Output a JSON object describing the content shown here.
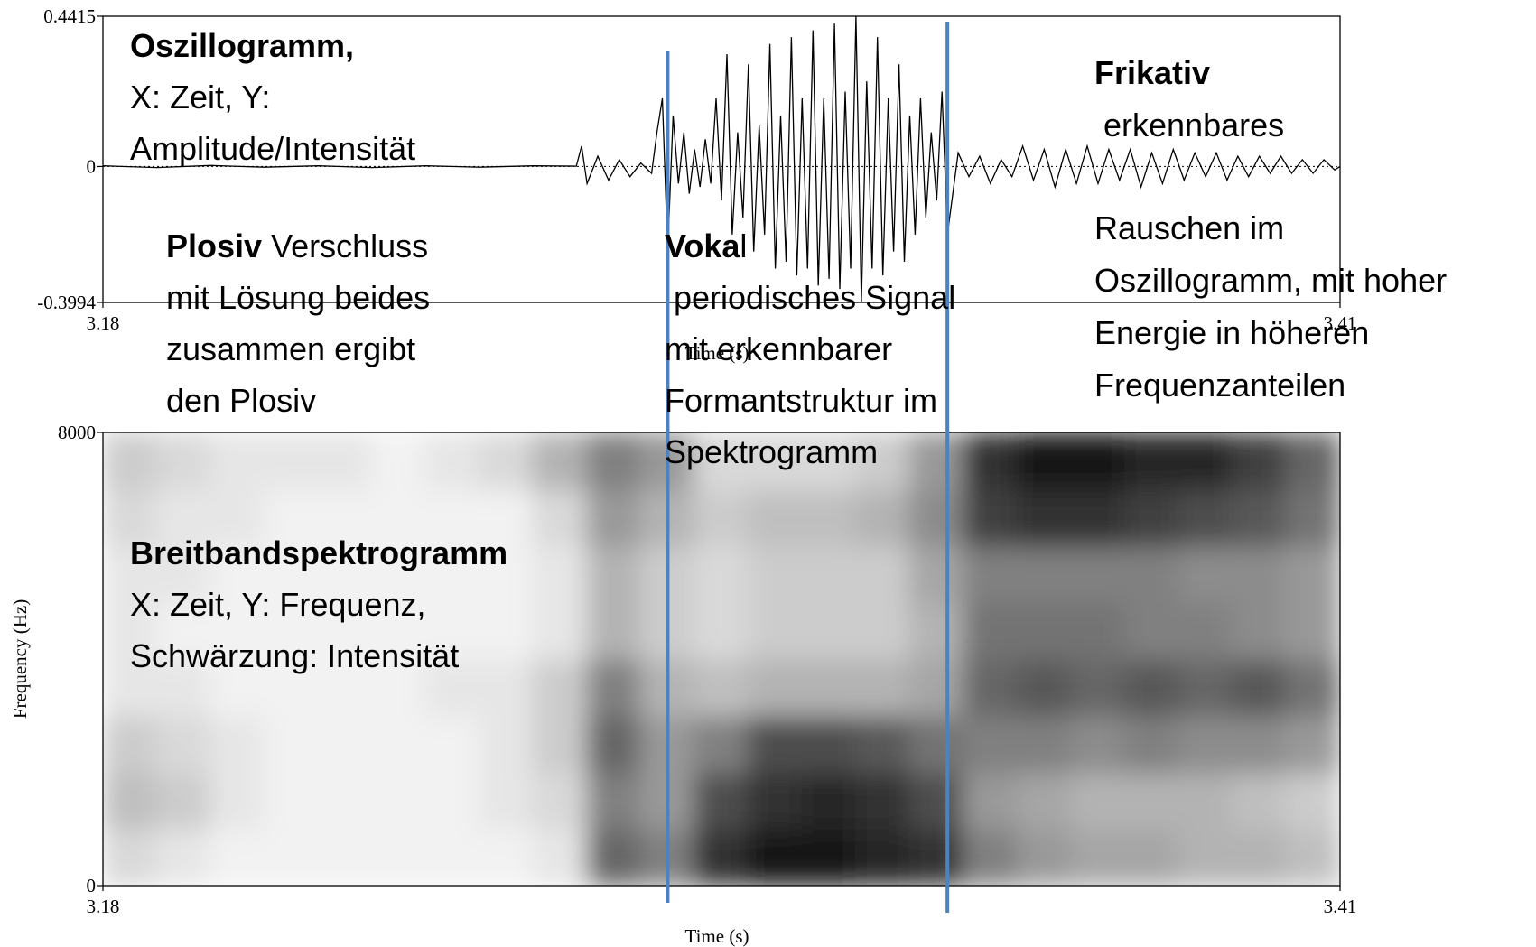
{
  "chart_data": [
    {
      "type": "line",
      "color": "#000000",
      "xlabel": "Time (s)",
      "xlim": [
        3.18,
        3.41
      ],
      "xticks": [
        3.18,
        3.41
      ],
      "ylim": [
        -0.3994,
        0.4415
      ],
      "yticks": [
        -0.3994,
        0,
        0.4415
      ],
      "x": [
        3.18,
        3.19,
        3.2,
        3.21,
        3.22,
        3.23,
        3.24,
        3.25,
        3.26,
        3.268,
        3.269,
        3.27,
        3.272,
        3.274,
        3.276,
        3.278,
        3.28,
        3.282,
        3.283,
        3.284,
        3.285,
        3.286,
        3.287,
        3.288,
        3.289,
        3.29,
        3.291,
        3.292,
        3.293,
        3.294,
        3.295,
        3.296,
        3.297,
        3.298,
        3.299,
        3.3,
        3.301,
        3.302,
        3.303,
        3.304,
        3.305,
        3.306,
        3.307,
        3.308,
        3.309,
        3.31,
        3.311,
        3.312,
        3.313,
        3.314,
        3.315,
        3.316,
        3.317,
        3.318,
        3.319,
        3.32,
        3.321,
        3.322,
        3.323,
        3.324,
        3.325,
        3.326,
        3.327,
        3.328,
        3.329,
        3.33,
        3.331,
        3.332,
        3.333,
        3.334,
        3.335,
        3.336,
        3.337,
        3.339,
        3.341,
        3.343,
        3.345,
        3.347,
        3.349,
        3.351,
        3.353,
        3.355,
        3.357,
        3.359,
        3.361,
        3.363,
        3.365,
        3.367,
        3.369,
        3.371,
        3.373,
        3.375,
        3.377,
        3.379,
        3.381,
        3.383,
        3.385,
        3.387,
        3.389,
        3.391,
        3.393,
        3.395,
        3.397,
        3.399,
        3.401,
        3.403,
        3.405,
        3.407,
        3.409,
        3.41
      ],
      "values": [
        0.002,
        -0.003,
        0.003,
        -0.002,
        0.002,
        -0.003,
        0.002,
        -0.002,
        0.002,
        0.001,
        0.06,
        -0.05,
        0.03,
        -0.04,
        0.02,
        -0.03,
        0.01,
        -0.02,
        0.1,
        0.2,
        -0.25,
        0.15,
        -0.05,
        0.1,
        -0.08,
        0.05,
        -0.06,
        0.08,
        -0.05,
        0.2,
        -0.1,
        0.33,
        -0.2,
        0.1,
        -0.15,
        0.3,
        -0.25,
        0.12,
        -0.2,
        0.36,
        -0.3,
        0.15,
        -0.28,
        0.38,
        -0.32,
        0.2,
        -0.3,
        0.4,
        -0.35,
        0.2,
        -0.33,
        0.42,
        -0.36,
        0.22,
        -0.3,
        0.4415,
        -0.3994,
        0.25,
        -0.3,
        0.38,
        -0.32,
        0.2,
        -0.25,
        0.3,
        -0.28,
        0.15,
        -0.2,
        0.2,
        -0.15,
        0.1,
        -0.1,
        0.22,
        -0.2,
        0.04,
        -0.03,
        0.03,
        -0.05,
        0.02,
        -0.03,
        0.06,
        -0.04,
        0.05,
        -0.06,
        0.05,
        -0.05,
        0.06,
        -0.05,
        0.05,
        -0.04,
        0.05,
        -0.06,
        0.04,
        -0.05,
        0.05,
        -0.04,
        0.04,
        -0.03,
        0.04,
        -0.04,
        0.03,
        -0.03,
        0.03,
        -0.02,
        0.03,
        -0.02,
        0.02,
        -0.02,
        0.02,
        -0.01,
        0
      ]
    },
    {
      "type": "heatmap",
      "xlabel": "Time (s)",
      "ylabel": "Frequency (Hz)",
      "xlim": [
        3.18,
        3.41
      ],
      "xticks": [
        3.18,
        3.41
      ],
      "ylim": [
        0,
        8000
      ],
      "yticks": [
        0,
        8000
      ],
      "values": [
        [
          0.15,
          0.25,
          0.2,
          0.1,
          0.1,
          0.1,
          0.15,
          0.2
        ],
        [
          0.1,
          0.2,
          0.15,
          0.1,
          0.05,
          0.1,
          0.1,
          0.15
        ],
        [
          0.05,
          0.1,
          0.1,
          0.05,
          0.05,
          0.05,
          0.1,
          0.1
        ],
        [
          0.05,
          0.05,
          0.05,
          0.05,
          0.05,
          0.05,
          0.05,
          0.1
        ],
        [
          0.05,
          0.05,
          0.05,
          0.05,
          0.05,
          0.05,
          0.05,
          0.1
        ],
        [
          0.05,
          0.05,
          0.05,
          0.05,
          0.05,
          0.05,
          0.05,
          0.05
        ],
        [
          0.05,
          0.05,
          0.05,
          0.1,
          0.05,
          0.05,
          0.05,
          0.1
        ],
        [
          0.05,
          0.1,
          0.1,
          0.1,
          0.05,
          0.05,
          0.05,
          0.15
        ],
        [
          0.1,
          0.15,
          0.2,
          0.2,
          0.1,
          0.1,
          0.15,
          0.3
        ],
        [
          0.6,
          0.5,
          0.6,
          0.5,
          0.3,
          0.3,
          0.4,
          0.5
        ],
        [
          0.5,
          0.4,
          0.4,
          0.3,
          0.2,
          0.2,
          0.3,
          0.4
        ],
        [
          0.8,
          0.7,
          0.5,
          0.25,
          0.15,
          0.15,
          0.2,
          0.15
        ],
        [
          0.9,
          0.8,
          0.7,
          0.3,
          0.2,
          0.2,
          0.25,
          0.15
        ],
        [
          0.9,
          0.85,
          0.7,
          0.3,
          0.2,
          0.2,
          0.25,
          0.15
        ],
        [
          0.85,
          0.8,
          0.65,
          0.3,
          0.2,
          0.2,
          0.3,
          0.2
        ],
        [
          0.8,
          0.7,
          0.55,
          0.35,
          0.3,
          0.35,
          0.45,
          0.4
        ],
        [
          0.5,
          0.4,
          0.5,
          0.6,
          0.55,
          0.5,
          0.75,
          0.8
        ],
        [
          0.4,
          0.35,
          0.5,
          0.65,
          0.55,
          0.5,
          0.8,
          0.9
        ],
        [
          0.35,
          0.3,
          0.45,
          0.6,
          0.55,
          0.5,
          0.8,
          0.9
        ],
        [
          0.35,
          0.3,
          0.5,
          0.65,
          0.5,
          0.5,
          0.75,
          0.85
        ],
        [
          0.3,
          0.3,
          0.45,
          0.6,
          0.5,
          0.45,
          0.7,
          0.85
        ],
        [
          0.3,
          0.25,
          0.45,
          0.65,
          0.45,
          0.45,
          0.65,
          0.75
        ],
        [
          0.25,
          0.2,
          0.4,
          0.55,
          0.4,
          0.4,
          0.55,
          0.6
        ]
      ]
    }
  ],
  "boundaries": {
    "color": "#4f81bd",
    "values": [
      3.285,
      3.337
    ]
  },
  "annotations": [
    {
      "lines": [
        {
          "bold": "Oszillogramm,"
        },
        "X: Zeit, Y:",
        "Amplitude/Intensität"
      ]
    },
    {
      "lines": [
        {
          "bold": "Plosiv",
          "text": " Verschluss"
        },
        "mit Lösung beides",
        "zusammen ergibt",
        "den Plosiv"
      ]
    },
    {
      "lines": [
        {
          "bold": "Voka",
          "text": "l"
        },
        " periodisches Signal",
        "mit erkennbarer",
        "Formantstruktur im",
        "Spektrogramm"
      ]
    },
    {
      "lines": [
        {
          "bold": "Frikativ"
        },
        " erkennbares"
      ]
    },
    {
      "lines": [
        "Rauschen im",
        "Oszillogramm, mit hoher",
        "Energie in höheren",
        "Frequenzanteilen"
      ]
    },
    {
      "lines": [
        {
          "bold": "Breitbandspektrogramm"
        },
        "X: Zeit, Y: Frequenz,",
        "Schwärzung: Intensität"
      ]
    }
  ]
}
